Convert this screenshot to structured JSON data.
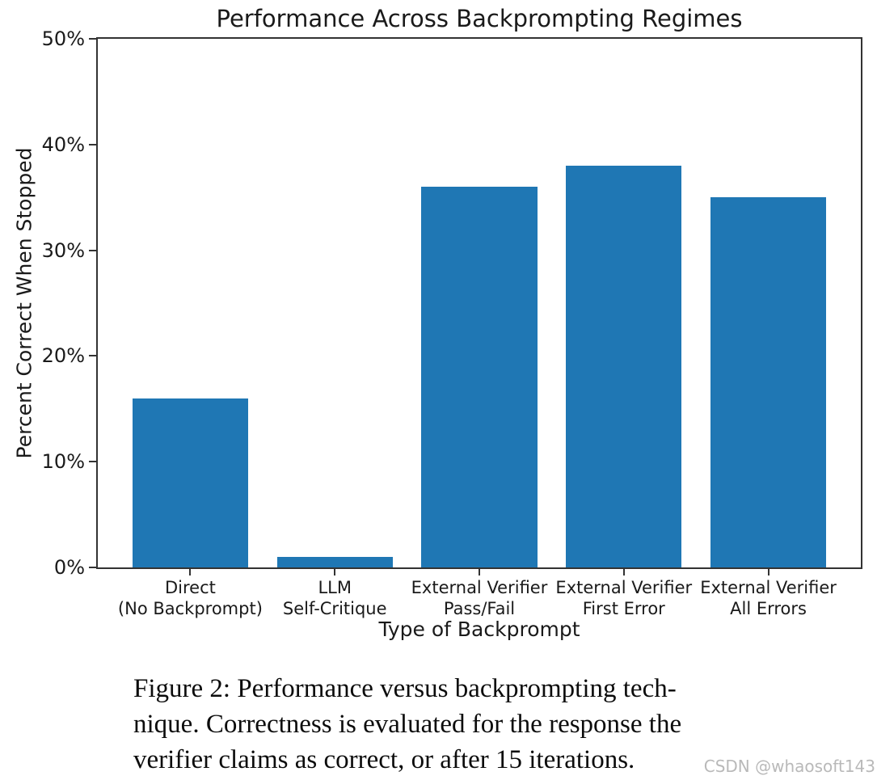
{
  "chart_data": {
    "type": "bar",
    "title": "Performance Across Backprompting Regimes",
    "categories": [
      [
        "Direct",
        "(No Backprompt)"
      ],
      [
        "LLM",
        "Self-Critique"
      ],
      [
        "External Verifier",
        "Pass/Fail"
      ],
      [
        "External Verifier",
        "First Error"
      ],
      [
        "External Verifier",
        "All Errors"
      ]
    ],
    "values": [
      16,
      1,
      36,
      38,
      35
    ],
    "xlabel": "Type of Backprompt",
    "ylabel": "Percent Correct When Stopped",
    "ylim": [
      0,
      50
    ],
    "ytick_values": [
      0,
      10,
      20,
      30,
      40,
      50
    ],
    "ytick_labels": [
      "0%",
      "10%",
      "20%",
      "30%",
      "40%",
      "50%"
    ],
    "bar_color": "#1f77b4",
    "spine_color": "#333333",
    "grid": false,
    "legend": null
  },
  "caption": {
    "lines": [
      "Figure 2: Performance versus backprompting tech-",
      "nique. Correctness is evaluated for the response the",
      "verifier claims as correct, or after 15 iterations."
    ]
  },
  "watermark": "CSDN @whaosoft143"
}
